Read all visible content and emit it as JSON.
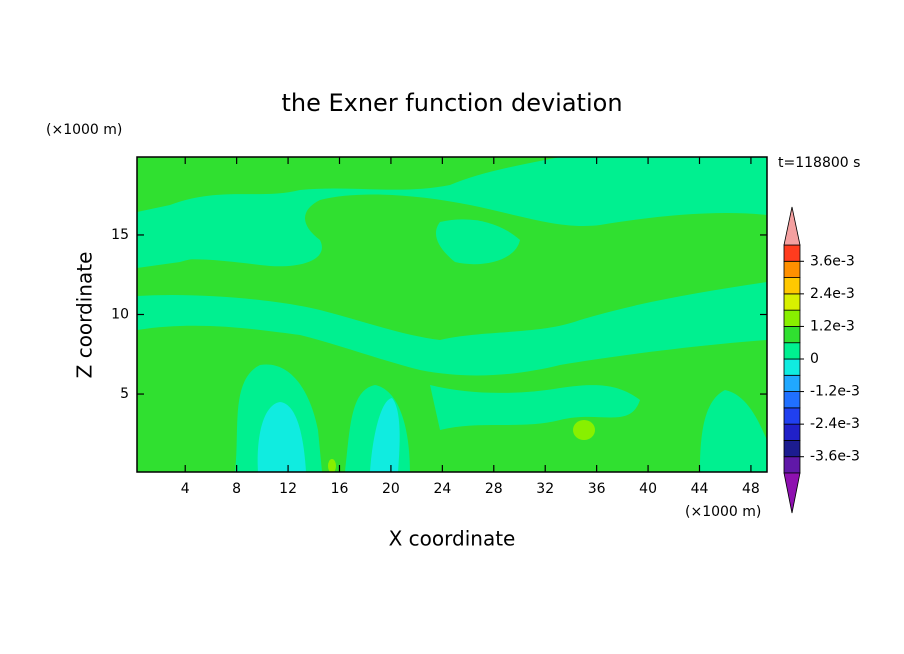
{
  "chart_data": {
    "type": "contour",
    "title": "the Exner function deviation",
    "x_label": "X coordinate",
    "y_label": "Z coordinate",
    "x_unit": "(×1000 m)",
    "y_unit": "(×1000 m)",
    "annotation": "t=118800 s",
    "xlim": [
      0.25,
      49.25
    ],
    "xticks": [
      4,
      8,
      12,
      16,
      20,
      24,
      28,
      32,
      36,
      40,
      44,
      48
    ],
    "ylim": [
      0.1,
      19.9
    ],
    "yticks": [
      5,
      10,
      15
    ],
    "colorbar": {
      "levels": [
        -0.0042,
        -0.0036,
        -0.003,
        -0.0024,
        -0.0018,
        -0.0012,
        -0.0006,
        0,
        0.0006,
        0.0012,
        0.0018,
        0.0024,
        0.003,
        0.0036,
        0.0042
      ],
      "colors": [
        "#6018a8",
        "#1c1c90",
        "#2020c8",
        "#2040f0",
        "#2070ff",
        "#20a8ff",
        "#10ece0",
        "#00f090",
        "#30e030",
        "#88f000",
        "#d8f000",
        "#ffc800",
        "#ff9000",
        "#ff3c1e"
      ],
      "over_color": "#f4a0a0",
      "under_color": "#8e10b0",
      "ticks": [
        {
          "value": 0.0036,
          "label": "3.6e-3"
        },
        {
          "value": 0.0024,
          "label": "2.4e-3"
        },
        {
          "value": 0.0012,
          "label": "1.2e-3"
        },
        0,
        {
          "value": -0.0012,
          "label": "-1.2e-3"
        },
        {
          "value": -0.0024,
          "label": "-2.4e-3"
        },
        {
          "value": -0.0036,
          "label": "-3.6e-3"
        }
      ]
    }
  }
}
